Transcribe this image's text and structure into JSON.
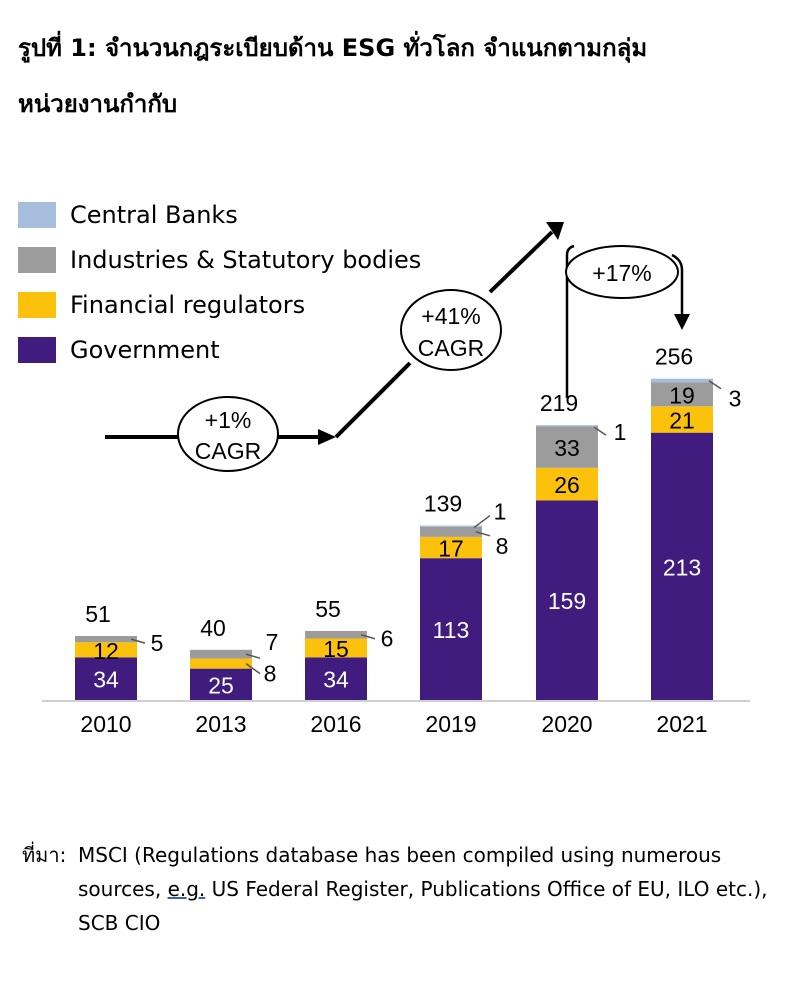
{
  "title": {
    "line1": "รูปที่ 1: จำนวนกฎระเบียบด้าน ESG ทั่วโลก จำแนกตามกลุ่ม",
    "line2": "หน่วยงานกำกับ"
  },
  "colors": {
    "Central Banks": "#a6bddb",
    "Industries & Statutory bodies": "#9c9c9c",
    "Financial regulators": "#fcc10a",
    "Government": "#3f1c7d"
  },
  "legend": [
    {
      "label": "Central Banks"
    },
    {
      "label": "Industries & Statutory bodies"
    },
    {
      "label": "Financial regulators"
    },
    {
      "label": "Government"
    }
  ],
  "chart_data": {
    "type": "bar",
    "stacked": true,
    "categories": [
      "2010",
      "2013",
      "2016",
      "2019",
      "2020",
      "2021"
    ],
    "series": [
      {
        "name": "Government",
        "values": [
          34,
          25,
          34,
          113,
          159,
          213
        ]
      },
      {
        "name": "Financial regulators",
        "values": [
          12,
          8,
          15,
          17,
          26,
          21
        ]
      },
      {
        "name": "Industries & Statutory bodies",
        "values": [
          5,
          7,
          6,
          8,
          33,
          19
        ]
      },
      {
        "name": "Central Banks",
        "values": [
          0,
          0,
          0,
          1,
          1,
          3
        ]
      }
    ],
    "totals": [
      51,
      40,
      55,
      139,
      219,
      256
    ],
    "annotations": [
      {
        "line1": "+1%",
        "line2": "CAGR"
      },
      {
        "line1": "+41%",
        "line2": "CAGR"
      },
      {
        "line1": "+17%"
      }
    ],
    "ylim": [
      0,
      256
    ]
  },
  "source": {
    "label": "ที่มา:",
    "text_before": "MSCI (Regulations database has been compiled using numerous sources, ",
    "eg": "e.g.",
    "text_after": " US Federal Register, Publications Office of EU, ILO etc.), SCB CIO"
  }
}
